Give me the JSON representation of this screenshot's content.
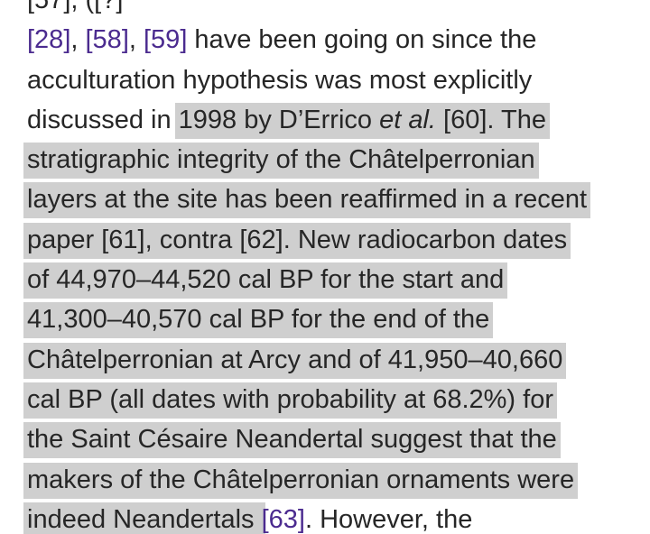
{
  "article": {
    "partial_top": "[57], ([?]",
    "lines": [
      {
        "pre_refs": [
          "[28]",
          "[58]",
          "[59]"
        ],
        "text": " have been going on since the"
      },
      {
        "text": "acculturation hypothesis was most explicitly"
      },
      {
        "plain": "discussed in ",
        "hl_a": "1998 by D’Errico ",
        "hl_italic": "et al.",
        "hl_b": " [60]. The"
      },
      {
        "text": "stratigraphic integrity of the Châtelperronian"
      },
      {
        "text": "layers at the site has been reaffirmed in a recent"
      },
      {
        "text": "paper [61], contra [62]. New radiocarbon dates"
      },
      {
        "text": "of 44,970–44,520 cal BP for the start and"
      },
      {
        "text": "41,300–40,570 cal BP for the end of the"
      },
      {
        "text": "Châtelperronian at Arcy and of 41,950–40,660"
      },
      {
        "text": "cal BP (all dates with probability at 68.2%) for"
      },
      {
        "text": "the Saint Césaire Neandertal suggest that the"
      },
      {
        "text": "makers of the Châtelperronian ornaments were"
      },
      {
        "hl": "indeed Neandertals ",
        "ref": "[63]",
        "plain": ". However, the"
      }
    ]
  },
  "colors": {
    "text": "#262626",
    "link": "#4b2b8f",
    "highlight": "#cfcfcf"
  }
}
